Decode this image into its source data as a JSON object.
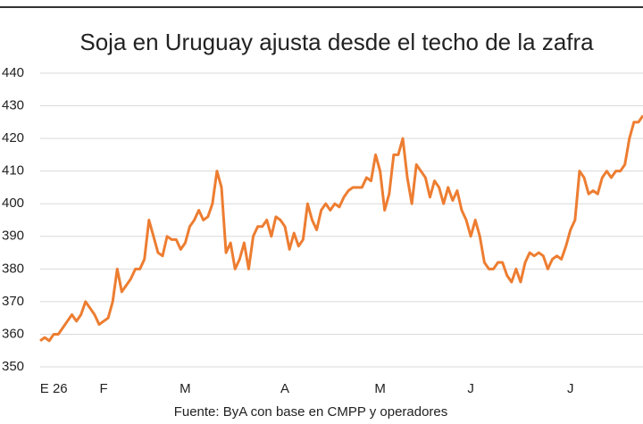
{
  "chart_data": {
    "type": "line",
    "title": "Soja en Uruguay ajusta desde el techo de la zafra",
    "source": "Fuente: ByA con base en CMPP y operadores",
    "categories": [
      null,
      null,
      null,
      "E 26",
      null,
      null,
      null,
      null,
      null,
      null,
      null,
      null,
      null,
      null,
      "F",
      null,
      null,
      null,
      null,
      null,
      null,
      null,
      null,
      null,
      null,
      null,
      null,
      null,
      null,
      null,
      null,
      null,
      "M",
      null,
      null,
      null,
      null,
      null,
      null,
      null,
      null,
      null,
      null,
      null,
      null,
      null,
      null,
      null,
      null,
      null,
      null,
      null,
      null,
      null,
      "A",
      null,
      null,
      null,
      null,
      null,
      null,
      null,
      null,
      null,
      null,
      null,
      null,
      null,
      null,
      null,
      null,
      null,
      null,
      null,
      null,
      "M",
      null,
      null,
      null,
      null,
      null,
      null,
      null,
      null,
      null,
      null,
      null,
      null,
      null,
      null,
      null,
      null,
      null,
      null,
      null,
      "J",
      null,
      null,
      null,
      null,
      null,
      null,
      null,
      null,
      null,
      null,
      null,
      null,
      null,
      null,
      null,
      null,
      null,
      null,
      null,
      null,
      null,
      "J",
      null,
      null,
      null,
      null,
      null,
      null,
      null,
      null,
      null,
      null,
      null,
      null,
      null,
      null,
      null,
      null
    ],
    "series": [
      {
        "name": "Soja",
        "color": "#ed7d31",
        "values": [
          358,
          359,
          358,
          360,
          360,
          362,
          364,
          366,
          364,
          366,
          370,
          368,
          366,
          363,
          364,
          365,
          370,
          380,
          373,
          375,
          377,
          380,
          380,
          383,
          395,
          390,
          385,
          384,
          390,
          389,
          389,
          386,
          388,
          393,
          395,
          398,
          395,
          396,
          400,
          410,
          405,
          385,
          388,
          380,
          383,
          388,
          380,
          390,
          393,
          393,
          395,
          390,
          396,
          395,
          393,
          386,
          391,
          387,
          389,
          400,
          395,
          392,
          398,
          400,
          398,
          400,
          399,
          402,
          404,
          405,
          405,
          405,
          408,
          407,
          415,
          410,
          398,
          403,
          415,
          415,
          420,
          408,
          400,
          412,
          410,
          408,
          402,
          407,
          405,
          400,
          405,
          401,
          404,
          398,
          395,
          390,
          395,
          390,
          382,
          380,
          380,
          382,
          382,
          378,
          376,
          380,
          376,
          382,
          385,
          384,
          385,
          384,
          380,
          383,
          384,
          383,
          387,
          392,
          395,
          410,
          408,
          403,
          404,
          403,
          408,
          410,
          408,
          410,
          410,
          412,
          420,
          425,
          425,
          427
        ]
      }
    ],
    "ylim": [
      350,
      440
    ],
    "yticks": [
      350,
      360,
      370,
      380,
      390,
      400,
      410,
      420,
      430,
      440
    ],
    "grid": true
  }
}
